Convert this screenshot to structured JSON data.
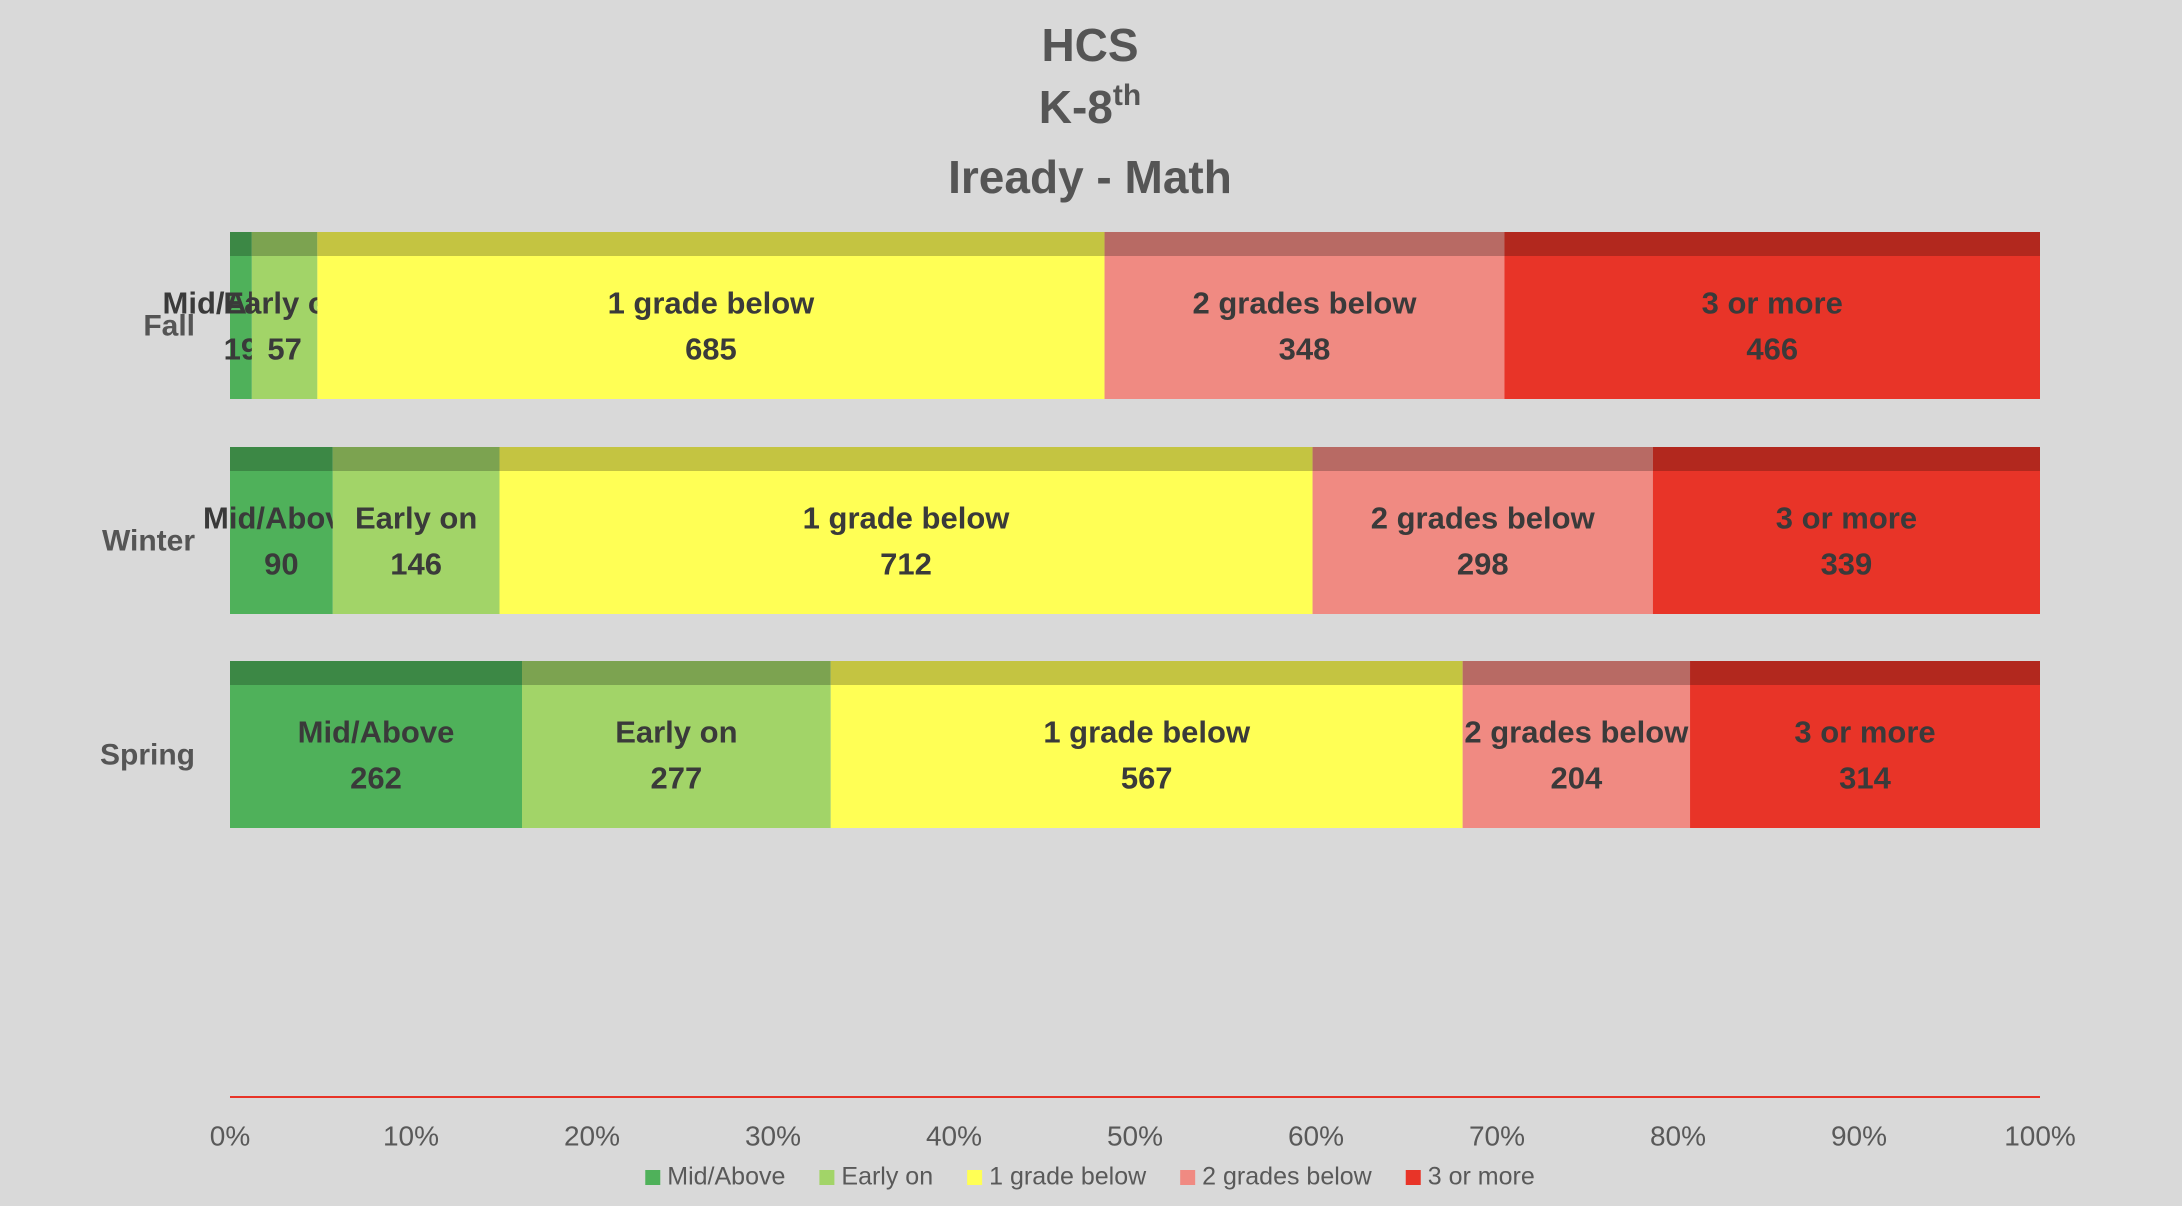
{
  "chart_data": {
    "type": "stacked_percent_bar",
    "title_lines": [
      "HCS",
      "K-8",
      "Iready - Math"
    ],
    "title_superscript": "th",
    "categories": [
      "Fall",
      "Winter",
      "Spring"
    ],
    "series": [
      {
        "name": "Mid/Above",
        "color": "#4fb15a",
        "values": [
          19,
          90,
          262
        ]
      },
      {
        "name": "Early on",
        "color": "#a2d468",
        "values": [
          57,
          146,
          277
        ]
      },
      {
        "name": "1 grade below",
        "color": "#ffff55",
        "values": [
          685,
          712,
          567
        ]
      },
      {
        "name": "2 grades below",
        "color": "#f08a82",
        "values": [
          348,
          298,
          204
        ]
      },
      {
        "name": "3 or more",
        "color": "#e83428",
        "values": [
          466,
          339,
          314
        ]
      }
    ],
    "xlim": [
      0,
      100
    ],
    "xticks": [
      {
        "value": 0,
        "label": "0%"
      },
      {
        "value": 10,
        "label": "10%"
      },
      {
        "value": 20,
        "label": "20%"
      },
      {
        "value": 30,
        "label": "30%"
      },
      {
        "value": 40,
        "label": "40%"
      },
      {
        "value": 50,
        "label": "50%"
      },
      {
        "value": 60,
        "label": "60%"
      },
      {
        "value": 70,
        "label": "70%"
      },
      {
        "value": 80,
        "label": "80%"
      },
      {
        "value": 90,
        "label": "90%"
      },
      {
        "value": 100,
        "label": "100%"
      }
    ],
    "axis_color": "#e83428",
    "legend": "bottom"
  }
}
